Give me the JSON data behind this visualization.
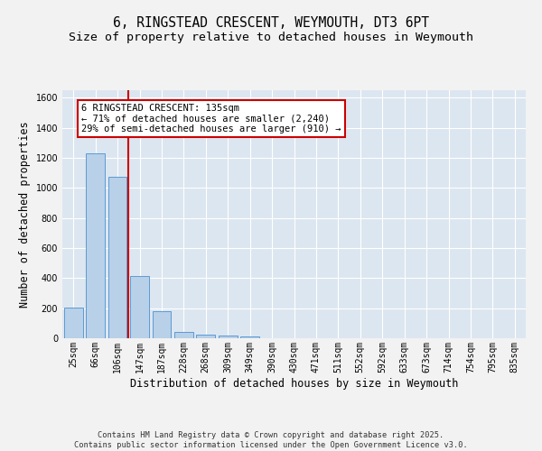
{
  "title": "6, RINGSTEAD CRESCENT, WEYMOUTH, DT3 6PT",
  "subtitle": "Size of property relative to detached houses in Weymouth",
  "xlabel": "Distribution of detached houses by size in Weymouth",
  "ylabel": "Number of detached properties",
  "categories": [
    "25sqm",
    "66sqm",
    "106sqm",
    "147sqm",
    "187sqm",
    "228sqm",
    "268sqm",
    "309sqm",
    "349sqm",
    "390sqm",
    "430sqm",
    "471sqm",
    "511sqm",
    "552sqm",
    "592sqm",
    "633sqm",
    "673sqm",
    "714sqm",
    "754sqm",
    "795sqm",
    "835sqm"
  ],
  "values": [
    205,
    1230,
    1075,
    415,
    180,
    45,
    25,
    20,
    10,
    0,
    0,
    0,
    0,
    0,
    0,
    0,
    0,
    0,
    0,
    0,
    0
  ],
  "bar_color": "#b8d0e8",
  "bar_edge_color": "#5b9bd5",
  "vline_color": "#cc0000",
  "annotation_text": "6 RINGSTEAD CRESCENT: 135sqm\n← 71% of detached houses are smaller (2,240)\n29% of semi-detached houses are larger (910) →",
  "annotation_box_color": "#ffffff",
  "annotation_box_edge": "#cc0000",
  "ylim": [
    0,
    1650
  ],
  "background_color": "#dce6f0",
  "plot_bg_color": "#dce6f0",
  "fig_bg_color": "#f2f2f2",
  "grid_color": "#ffffff",
  "title_fontsize": 10.5,
  "subtitle_fontsize": 9.5,
  "footer_text": "Contains HM Land Registry data © Crown copyright and database right 2025.\nContains public sector information licensed under the Open Government Licence v3.0.",
  "tick_fontsize": 7,
  "ylabel_fontsize": 8.5,
  "xlabel_fontsize": 8.5,
  "annotation_fontsize": 7.5
}
